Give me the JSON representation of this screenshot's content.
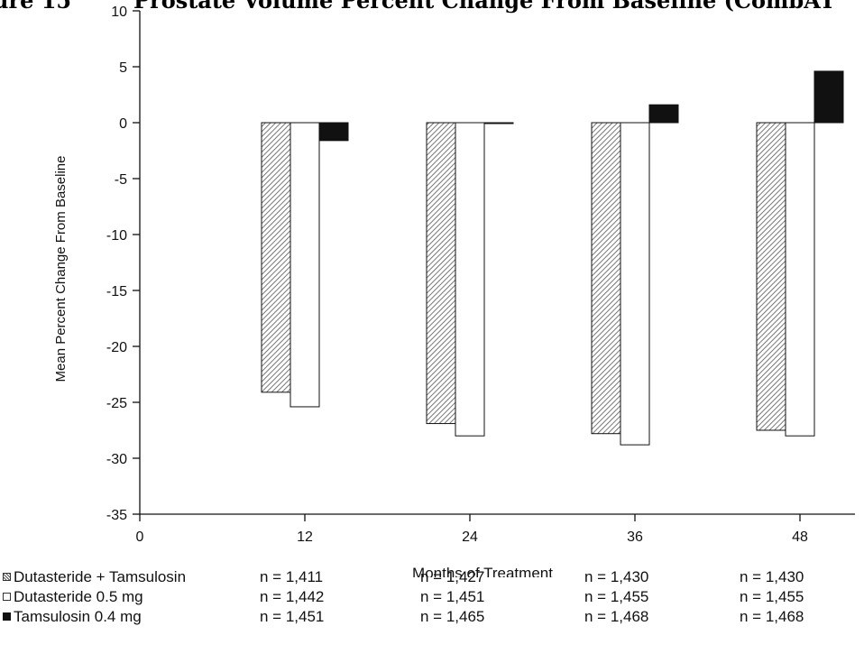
{
  "figure": {
    "label": "ure 15",
    "title": "Prostate Volume Percent Change From Baseline (CombAT"
  },
  "chart_data": {
    "type": "bar",
    "categories": [
      "12",
      "24",
      "36",
      "48"
    ],
    "series": [
      {
        "name": "Dutasteride + Tamsulosin",
        "values": [
          -24.1,
          -26.9,
          -27.8,
          -27.5
        ],
        "pattern": "hatched"
      },
      {
        "name": "Dutasteride 0.5 mg",
        "values": [
          -25.4,
          -28.0,
          -28.8,
          -28.0
        ],
        "pattern": "white"
      },
      {
        "name": "Tamsulosin 0.4 mg",
        "values": [
          -1.6,
          0.0,
          1.6,
          4.6
        ],
        "pattern": "solid"
      }
    ],
    "xlabel": "Months of Treatment",
    "ylabel": "Mean Percent Change From Baseline",
    "x_ticks": [
      "0",
      "12",
      "24",
      "36",
      "48"
    ],
    "y_ticks": [
      10,
      5,
      0,
      -5,
      -10,
      -15,
      -20,
      -25,
      -30,
      -35
    ],
    "ylim": [
      -35,
      10
    ],
    "grid": false,
    "legend_placement": "bottom"
  },
  "n_table": {
    "rows": [
      {
        "name": "Dutasteride + Tamsulosin",
        "values": [
          "n = 1,411",
          "n = 1,427",
          "n = 1,430",
          "n = 1,430"
        ]
      },
      {
        "name": "Dutasteride 0.5 mg",
        "values": [
          "n = 1,442",
          "n = 1,451",
          "n = 1,455",
          "n = 1,455"
        ]
      },
      {
        "name": "Tamsulosin 0.4 mg",
        "values": [
          "n = 1,451",
          "n = 1,465",
          "n = 1,468",
          "n = 1,468"
        ]
      }
    ]
  }
}
